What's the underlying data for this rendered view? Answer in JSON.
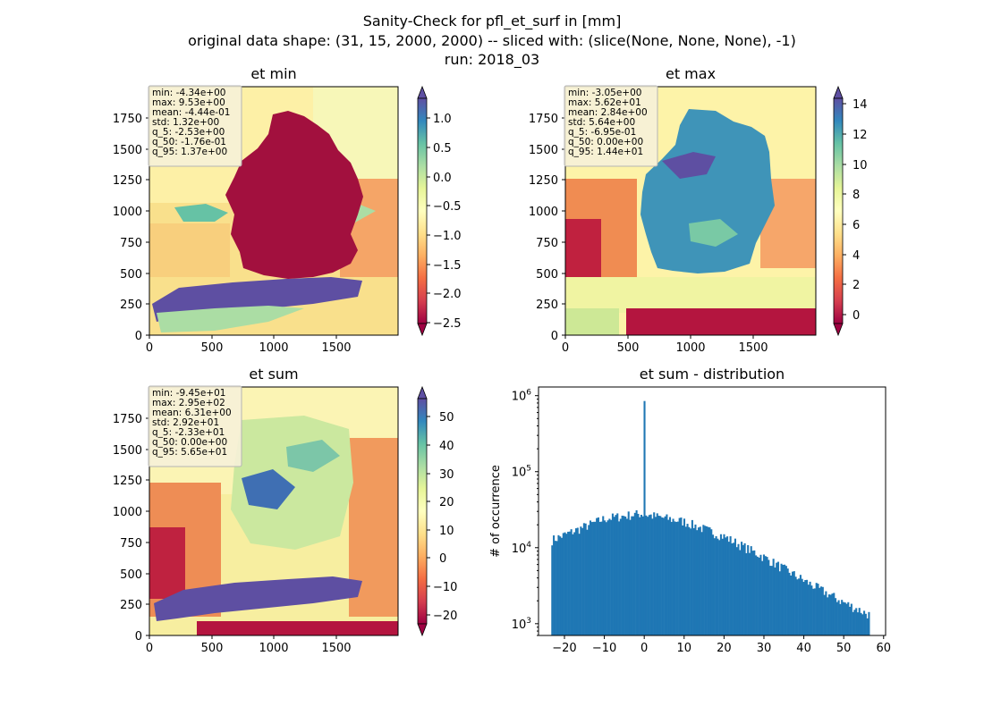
{
  "figure": {
    "title_lines": [
      "Sanity-Check for pfl_et_surf in [mm]",
      "original data shape: (31, 15, 2000, 2000) -- sliced with: (slice(None, None, None), -1)",
      "run: 2018_03"
    ]
  },
  "colors": {
    "hist_bar": "#1f77b4",
    "spectral": [
      "#9e0142",
      "#d53e4f",
      "#f46d43",
      "#fdae61",
      "#fee08b",
      "#ffffbf",
      "#e6f598",
      "#abdda4",
      "#66c2a5",
      "#3288bd",
      "#5e4fa2"
    ]
  },
  "chart_data": [
    {
      "type": "heatmap",
      "title": "et min",
      "colormap": "Spectral",
      "xlim": [
        0,
        2000
      ],
      "ylim": [
        0,
        2000
      ],
      "xticks": [
        "0",
        "500",
        "1000",
        "1500"
      ],
      "yticks": [
        "0",
        "250",
        "500",
        "750",
        "1000",
        "1250",
        "1500",
        "1750"
      ],
      "colorbar": {
        "range": [
          -2.5,
          1.35
        ],
        "ticks": [
          "1.0",
          "0.5",
          "0.0",
          "−0.5",
          "−1.0",
          "−1.5",
          "−2.0",
          "−2.5"
        ],
        "tick_values": [
          1.0,
          0.5,
          0.0,
          -0.5,
          -1.0,
          -1.5,
          -2.0,
          -2.5
        ],
        "extend": "both"
      },
      "stats": [
        "min: -4.34e+00",
        "max: 9.53e+00",
        "mean: -4.44e-01",
        "std: 1.32e+00",
        "q_5: -2.53e+00",
        "q_50: -1.76e-01",
        "q_95: 1.37e+00"
      ]
    },
    {
      "type": "heatmap",
      "title": "et max",
      "colormap": "Spectral",
      "xlim": [
        0,
        2000
      ],
      "ylim": [
        0,
        2000
      ],
      "xticks": [
        "0",
        "500",
        "1000",
        "1500"
      ],
      "yticks": [
        "0",
        "250",
        "500",
        "750",
        "1000",
        "1250",
        "1500",
        "1750"
      ],
      "colorbar": {
        "range": [
          -0.7,
          14.4
        ],
        "ticks": [
          "14",
          "12",
          "10",
          "8",
          "6",
          "4",
          "2",
          "0"
        ],
        "tick_values": [
          14,
          12,
          10,
          8,
          6,
          4,
          2,
          0
        ],
        "extend": "both"
      },
      "stats": [
        "min: -3.05e+00",
        "max: 5.62e+01",
        "mean: 2.84e+00",
        "std: 5.64e+00",
        "q_5: -6.95e-01",
        "q_50: 0.00e+00",
        "q_95: 1.44e+01"
      ]
    },
    {
      "type": "heatmap",
      "title": "et sum",
      "colormap": "Spectral",
      "xlim": [
        0,
        2000
      ],
      "ylim": [
        0,
        2000
      ],
      "xticks": [
        "0",
        "500",
        "1000",
        "1500"
      ],
      "yticks": [
        "0",
        "250",
        "500",
        "750",
        "1000",
        "1250",
        "1500",
        "1750"
      ],
      "colorbar": {
        "range": [
          -23.3,
          56.5
        ],
        "ticks": [
          "50",
          "40",
          "30",
          "20",
          "10",
          "0",
          "−10",
          "−20"
        ],
        "tick_values": [
          50,
          40,
          30,
          20,
          10,
          0,
          -10,
          -20
        ],
        "extend": "both"
      },
      "stats": [
        "min: -9.45e+01",
        "max: 2.95e+02",
        "mean: 6.31e+00",
        "std: 2.92e+01",
        "q_5: -2.33e+01",
        "q_50: 0.00e+00",
        "q_95: 5.65e+01"
      ]
    },
    {
      "type": "bar",
      "title": "et sum - distribution",
      "ylabel": "# of occurrence",
      "xlabel": "",
      "yscale": "log",
      "xlim": [
        -26.5,
        60.5
      ],
      "ylim": [
        700,
        1300000
      ],
      "xticks": [
        "−20",
        "−10",
        "0",
        "10",
        "20",
        "30",
        "40",
        "50",
        "60"
      ],
      "xtick_values": [
        -20,
        -10,
        0,
        10,
        20,
        30,
        40,
        50,
        60
      ],
      "yticks": [
        {
          "base": "10",
          "exp": "3",
          "value": 1000
        },
        {
          "base": "10",
          "exp": "4",
          "value": 10000
        },
        {
          "base": "10",
          "exp": "5",
          "value": 100000
        },
        {
          "base": "10",
          "exp": "6",
          "value": 1000000
        }
      ],
      "bins": {
        "start": -23.3,
        "end": 56.5,
        "count": 200
      },
      "trend": [
        [
          -23.3,
          12500
        ],
        [
          -10,
          24000
        ],
        [
          -1,
          28000
        ],
        [
          10,
          22000
        ],
        [
          20,
          14000
        ],
        [
          30,
          7500
        ],
        [
          40,
          3700
        ],
        [
          50,
          1900
        ],
        [
          56.5,
          1300
        ]
      ],
      "spike": {
        "x": 0.0,
        "count": 850000
      }
    }
  ]
}
